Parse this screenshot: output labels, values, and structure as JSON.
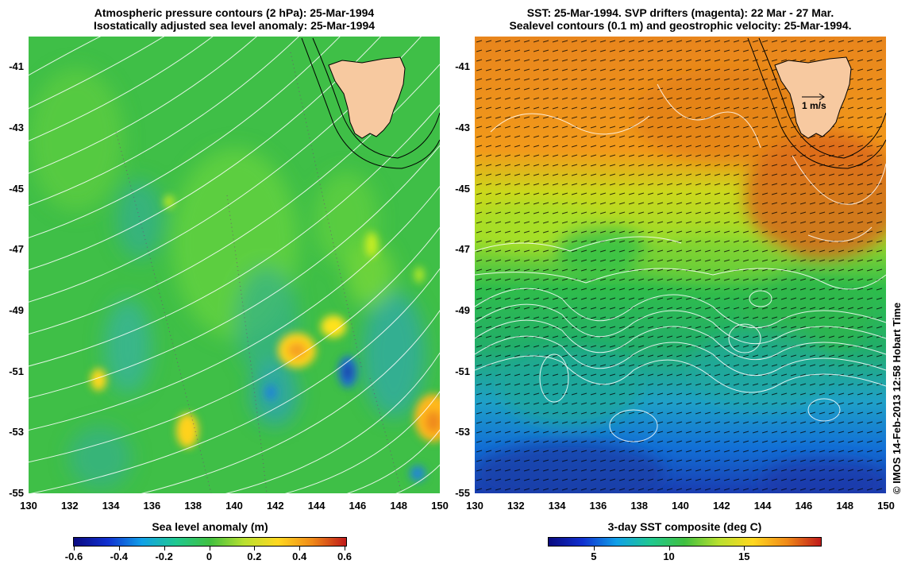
{
  "left_panel": {
    "title_line1": "Atmospheric pressure contours (2 hPa): 25-Mar-1994",
    "title_line2": "Isostatically adjusted sea level anomaly: 25-Mar-1994",
    "colorbar_label": "Sea level anomaly (m)",
    "colorbar_ticks": [
      "-0.6",
      "-0.4",
      "-0.2",
      "0",
      "0.2",
      "0.4",
      "0.6"
    ],
    "colorbar_range": [
      -0.6,
      0.6
    ]
  },
  "right_panel": {
    "title_line1": "SST: 25-Mar-1994. SVP drifters (magenta): 22 Mar - 27 Mar.",
    "title_line2": "Sealevel contours (0.1 m) and geostrophic velocity: 25-Mar-1994.",
    "colorbar_label": "3-day SST composite (deg C)",
    "colorbar_ticks": [
      "5",
      "10",
      "15"
    ],
    "colorbar_range": [
      2,
      20
    ],
    "velocity_scale_label": "1 m/s"
  },
  "axes": {
    "lon_ticks": [
      "130",
      "132",
      "134",
      "136",
      "138",
      "140",
      "142",
      "144",
      "146",
      "148",
      "150"
    ],
    "lat_ticks": [
      "-41",
      "-43",
      "-45",
      "-47",
      "-49",
      "-51",
      "-53",
      "-55"
    ],
    "lon_range": [
      130,
      150
    ],
    "lat_range": [
      -55,
      -40
    ]
  },
  "credit": "© IMOS 14-Feb-2013 12:58 Hobart Time",
  "colors": {
    "land": "#f7c9a0",
    "contour": "#ffffff",
    "slope_line": "#000000"
  }
}
